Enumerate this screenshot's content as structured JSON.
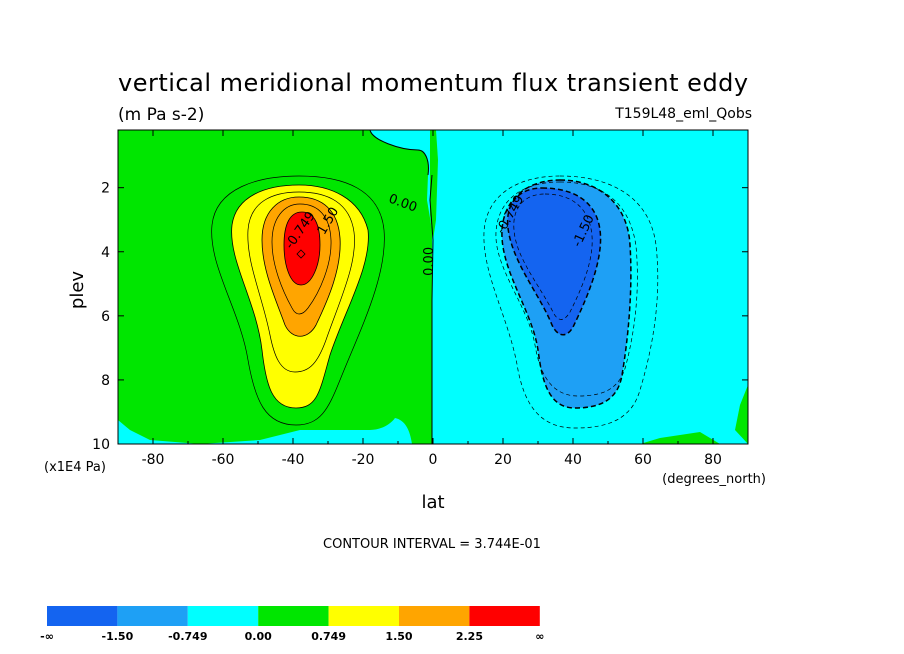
{
  "chart_data": {
    "type": "heatmap",
    "title": "vertical meridional momentum flux transient eddy",
    "units": "(m Pa s-2)",
    "dataset": "T159L48_eml_Qobs",
    "xlabel": "lat",
    "x_units": "(degrees_north)",
    "ylabel": "plev",
    "y_units": "(x1E4 Pa)",
    "xlim": [
      -90,
      90
    ],
    "ylim": [
      10,
      0.2
    ],
    "x_ticks": [
      {
        "value": -80,
        "label": "-80"
      },
      {
        "value": -60,
        "label": "-60"
      },
      {
        "value": -40,
        "label": "-40"
      },
      {
        "value": -20,
        "label": "-20"
      },
      {
        "value": 0,
        "label": "0"
      },
      {
        "value": 20,
        "label": "20"
      },
      {
        "value": 40,
        "label": "40"
      },
      {
        "value": 60,
        "label": "60"
      },
      {
        "value": 80,
        "label": "80"
      }
    ],
    "y_ticks": [
      {
        "value": 2,
        "label": "2"
      },
      {
        "value": 4,
        "label": "4"
      },
      {
        "value": 6,
        "label": "6"
      },
      {
        "value": 8,
        "label": "8"
      },
      {
        "value": 10,
        "label": "10"
      }
    ],
    "contour_interval": "CONTOUR INTERVAL = 3.744E-01",
    "levels": [
      "-∞",
      "-1.50",
      "-0.749",
      "0.00",
      "0.749",
      "1.50",
      "2.25",
      "∞"
    ],
    "level_values": [
      -1.5,
      -0.749,
      0.0,
      0.749,
      1.5,
      2.25
    ],
    "colors": [
      "#1464f0",
      "#1ea0f5",
      "#00ffff",
      "#00e600",
      "#ffff00",
      "#ffa500",
      "#ff0000"
    ],
    "contour_labels": [
      {
        "text": "-0.749",
        "lat": -37,
        "plev": 3.4
      },
      {
        "text": "1.50",
        "lat": -29,
        "plev": 3.1
      },
      {
        "text": "0.00",
        "lat": -9,
        "plev": 2.6
      },
      {
        "text": "0.00",
        "lat": 0,
        "plev": 4.3
      },
      {
        "text": "-0.749",
        "lat": 23,
        "plev": 2.9
      },
      {
        "text": "-1.50",
        "lat": 44,
        "plev": 3.4
      }
    ],
    "features": [
      {
        "name": "southern positive maximum",
        "lat": -38,
        "plev": 4.0,
        "approx_value": 2.6
      },
      {
        "name": "northern negative minimum",
        "lat": 37,
        "plev": 4.0,
        "approx_value": -2.0
      }
    ]
  }
}
